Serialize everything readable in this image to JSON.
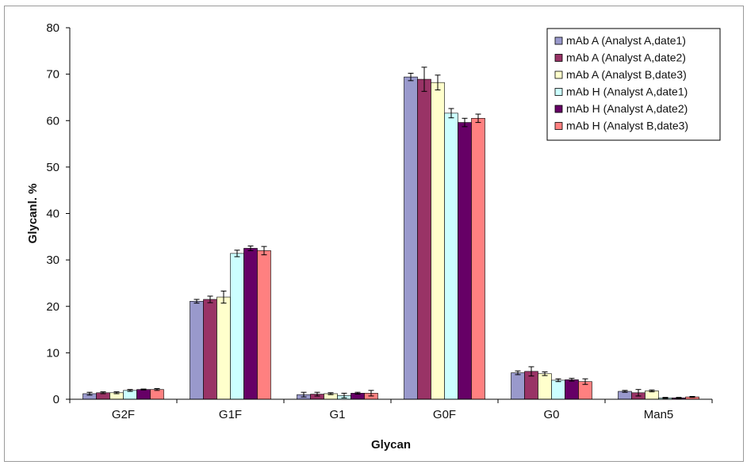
{
  "chart_data": {
    "type": "bar",
    "title": "",
    "xlabel": "Glycan",
    "ylabel": "Glycanl. %",
    "ylim": [
      0,
      80
    ],
    "yticks": [
      0,
      10,
      20,
      30,
      40,
      50,
      60,
      70,
      80
    ],
    "grid": false,
    "legend_position": "top-right",
    "categories": [
      "G2F",
      "G1F",
      "G1",
      "G0F",
      "G0",
      "Man5"
    ],
    "series": [
      {
        "name": "mAb A (Analyst A,date1)",
        "color": "#9999cc",
        "values": [
          1.2,
          21.1,
          1.0,
          69.4,
          5.7,
          1.7
        ],
        "errors": [
          0.3,
          0.4,
          0.5,
          0.8,
          0.4,
          0.2
        ]
      },
      {
        "name": "mAb A (Analyst A,date2)",
        "color": "#993366",
        "values": [
          1.4,
          21.5,
          1.1,
          68.9,
          6.0,
          1.4
        ],
        "errors": [
          0.2,
          0.7,
          0.4,
          2.6,
          1.0,
          0.7
        ]
      },
      {
        "name": "mAb A (Analyst B,date3)",
        "color": "#ffffcc",
        "values": [
          1.4,
          22.0,
          1.2,
          68.2,
          5.5,
          1.8
        ],
        "errors": [
          0.2,
          1.3,
          0.2,
          1.6,
          0.4,
          0.2
        ]
      },
      {
        "name": "mAb H (Analyst A,date1)",
        "color": "#ccffff",
        "values": [
          1.9,
          31.4,
          0.8,
          61.6,
          4.1,
          0.3
        ],
        "errors": [
          0.2,
          0.7,
          0.5,
          1.0,
          0.3,
          0.1
        ]
      },
      {
        "name": "mAb H (Analyst A,date2)",
        "color": "#660066",
        "values": [
          2.1,
          32.5,
          1.3,
          59.6,
          4.2,
          0.3
        ],
        "errors": [
          0.1,
          0.5,
          0.2,
          0.9,
          0.3,
          0.1
        ]
      },
      {
        "name": "mAb H (Analyst B,date3)",
        "color": "#ff8080",
        "values": [
          2.1,
          32.0,
          1.3,
          60.5,
          3.8,
          0.5
        ],
        "errors": [
          0.2,
          0.9,
          0.6,
          0.9,
          0.6,
          0.1
        ]
      }
    ]
  }
}
